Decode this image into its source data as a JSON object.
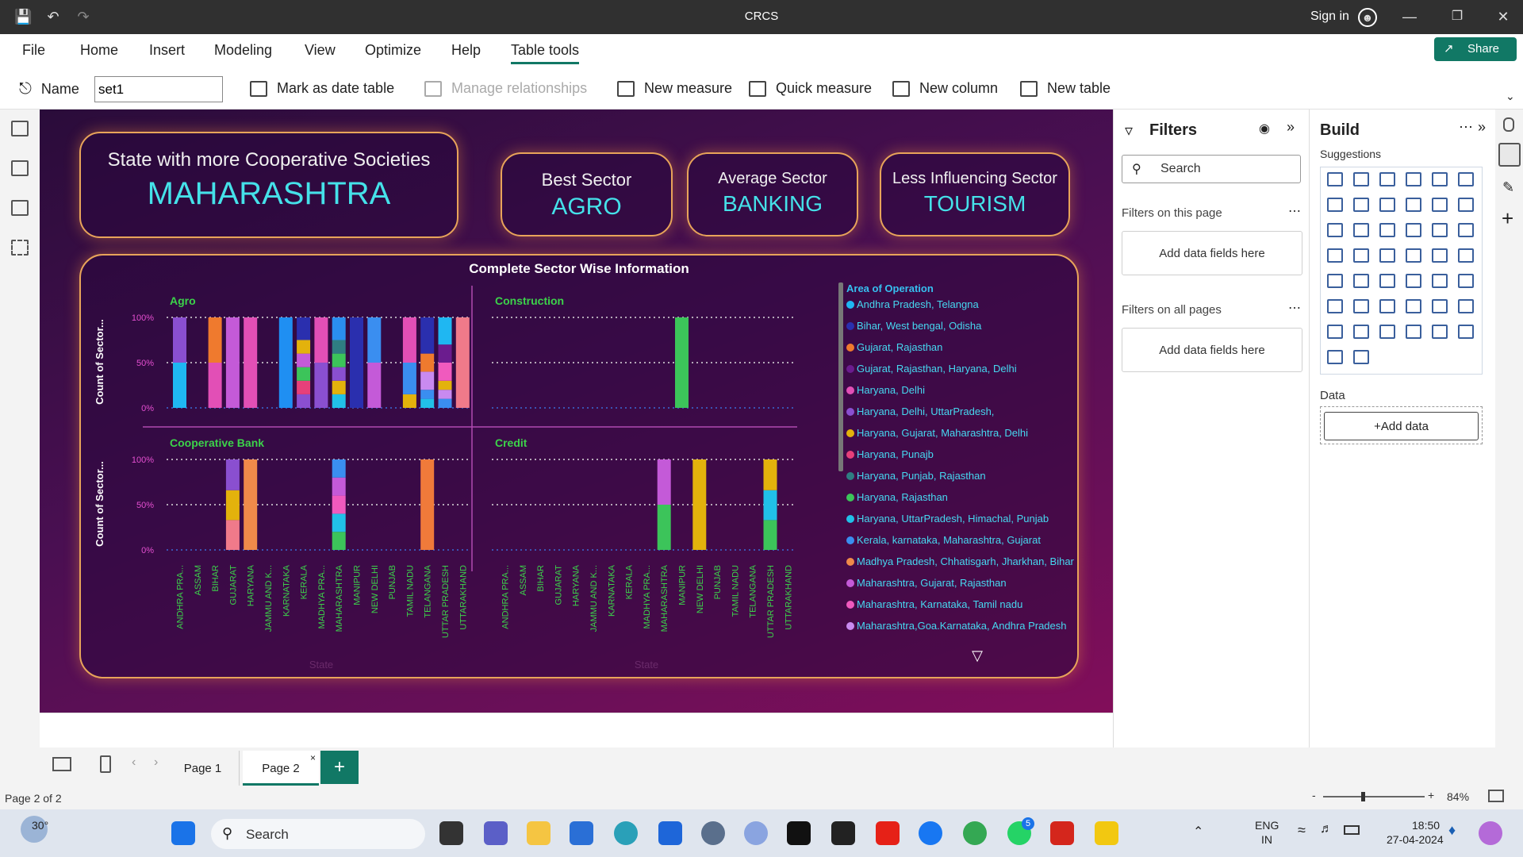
{
  "window": {
    "title": "CRCS",
    "sign_in": "Sign in",
    "share": "Share"
  },
  "menu": [
    "File",
    "Home",
    "Insert",
    "Modeling",
    "View",
    "Optimize",
    "Help",
    "Table tools"
  ],
  "ribbon": {
    "name_label": "Name",
    "name_value": "set1",
    "mark_date": "Mark as date table",
    "manage_rel": "Manage relationships",
    "new_measure": "New measure",
    "quick_measure": "Quick measure",
    "new_column": "New column",
    "new_table": "New table"
  },
  "cards": {
    "state": {
      "label": "State with more Cooperative Societies",
      "value": "MAHARASHTRA"
    },
    "best": {
      "label": "Best Sector",
      "value": "AGRO"
    },
    "avg": {
      "label": "Average Sector",
      "value": "BANKING"
    },
    "less": {
      "label": "Less Influencing Sector",
      "value": "TOURISM"
    }
  },
  "chart_data": {
    "type": "bar",
    "title": "Complete Sector Wise Information",
    "ylabel": "Count of Sector...",
    "xlabel": "State",
    "yticks": [
      "100%",
      "50%",
      "0%"
    ],
    "categories": [
      "ANDHRA PRA...",
      "ASSAM",
      "BIHAR",
      "GUJARAT",
      "HARYANA",
      "JAMMU AND K...",
      "KARNATAKA",
      "KERALA",
      "MADHYA PRA...",
      "MAHARASHTRA",
      "MANIPUR",
      "NEW DELHI",
      "PUNJAB",
      "TAMIL NADU",
      "TELANGANA",
      "UTTAR PRADESH",
      "UTTARAKHAND"
    ],
    "legend_title": "Area of Operation",
    "legend": [
      {
        "name": "Andhra Pradesh, Telangna",
        "color": "#1fb7f2"
      },
      {
        "name": "Bihar, West bengal, Odisha",
        "color": "#2a2fae"
      },
      {
        "name": "Gujarat, Rajasthan",
        "color": "#ef7a2e"
      },
      {
        "name": "Gujarat, Rajasthan, Haryana, Delhi",
        "color": "#6b1c8e"
      },
      {
        "name": "Haryana, Delhi",
        "color": "#e24fb6"
      },
      {
        "name": "Haryana, Delhi, UttarPradesh,",
        "color": "#8a4fd0"
      },
      {
        "name": "Haryana, Gujarat, Maharashtra, Delhi",
        "color": "#e3b20c"
      },
      {
        "name": "Haryana, Punajb",
        "color": "#e6407a"
      },
      {
        "name": "Haryana, Punjab, Rajasthan",
        "color": "#2f7d82"
      },
      {
        "name": "Haryana, Rajasthan",
        "color": "#3cc45a"
      },
      {
        "name": "Haryana, UttarPradesh, Himachal, Punjab",
        "color": "#21c0e8"
      },
      {
        "name": "Kerala, karnataka, Maharashtra, Gujarat",
        "color": "#3a8ef0"
      },
      {
        "name": "Madhya Pradesh, Chhatisgarh, Jharkhan, Bihar",
        "color": "#f08a4a"
      },
      {
        "name": "Maharashtra, Gujarat, Rajasthan",
        "color": "#c45ad8"
      },
      {
        "name": "Maharashtra, Karnataka, Tamil nadu",
        "color": "#f05abe"
      },
      {
        "name": "Maharashtra,Goa.Karnataka, Andhra Pradesh",
        "color": "#c98af0"
      }
    ],
    "panels": [
      {
        "title": "Agro",
        "bars": [
          {
            "cat": 0,
            "segs": [
              [
                0.5,
                "#1fb7f2"
              ],
              [
                0.5,
                "#8a4fd0"
              ]
            ]
          },
          {
            "cat": 2,
            "segs": [
              [
                0.5,
                "#e24fb6"
              ],
              [
                0.5,
                "#ef7a2e"
              ]
            ]
          },
          {
            "cat": 3,
            "segs": [
              [
                1.0,
                "#c45ad8"
              ]
            ]
          },
          {
            "cat": 4,
            "segs": [
              [
                1.0,
                "#e24fb6"
              ]
            ]
          },
          {
            "cat": 6,
            "segs": [
              [
                1.0,
                "#1f8ff2"
              ]
            ]
          },
          {
            "cat": 7,
            "segs": [
              [
                0.15,
                "#8a4fd0"
              ],
              [
                0.15,
                "#e6407a"
              ],
              [
                0.15,
                "#3cc45a"
              ],
              [
                0.15,
                "#c45ad8"
              ],
              [
                0.15,
                "#e3b20c"
              ],
              [
                0.25,
                "#2a2fae"
              ]
            ]
          },
          {
            "cat": 8,
            "segs": [
              [
                0.5,
                "#8a4fd0"
              ],
              [
                0.5,
                "#e24fb6"
              ]
            ]
          },
          {
            "cat": 9,
            "segs": [
              [
                0.15,
                "#21c0e8"
              ],
              [
                0.15,
                "#e3b20c"
              ],
              [
                0.15,
                "#8a4fd0"
              ],
              [
                0.15,
                "#3cc45a"
              ],
              [
                0.15,
                "#2f7d82"
              ],
              [
                0.25,
                "#2a8ef0"
              ]
            ]
          },
          {
            "cat": 10,
            "segs": [
              [
                1.0,
                "#2a2fae"
              ]
            ]
          },
          {
            "cat": 11,
            "segs": [
              [
                0.5,
                "#c45ad8"
              ],
              [
                0.5,
                "#3a8ef0"
              ]
            ]
          },
          {
            "cat": 13,
            "segs": [
              [
                0.15,
                "#e3b20c"
              ],
              [
                0.35,
                "#3a8ef0"
              ],
              [
                0.5,
                "#e24fb6"
              ]
            ]
          },
          {
            "cat": 14,
            "segs": [
              [
                0.1,
                "#21c0e8"
              ],
              [
                0.1,
                "#3a8ef0"
              ],
              [
                0.2,
                "#c98af0"
              ],
              [
                0.2,
                "#ef7a2e"
              ],
              [
                0.4,
                "#2a2fae"
              ]
            ]
          },
          {
            "cat": 15,
            "segs": [
              [
                0.1,
                "#3a8ef0"
              ],
              [
                0.1,
                "#c98af0"
              ],
              [
                0.1,
                "#e3b20c"
              ],
              [
                0.2,
                "#f05abe"
              ],
              [
                0.2,
                "#6b1c8e"
              ],
              [
                0.3,
                "#1fb7f2"
              ]
            ]
          },
          {
            "cat": 16,
            "segs": [
              [
                1.0,
                "#f07a8a"
              ]
            ]
          }
        ]
      },
      {
        "title": "Construction",
        "bars": [
          {
            "cat": 10,
            "segs": [
              [
                1.0,
                "#3cc45a"
              ]
            ]
          }
        ]
      },
      {
        "title": "Cooperative Bank",
        "bars": [
          {
            "cat": 3,
            "segs": [
              [
                0.33,
                "#f07a8a"
              ],
              [
                0.33,
                "#e3b20c"
              ],
              [
                0.34,
                "#8a4fd0"
              ]
            ]
          },
          {
            "cat": 4,
            "segs": [
              [
                1.0,
                "#f08a4a"
              ]
            ]
          },
          {
            "cat": 9,
            "segs": [
              [
                0.2,
                "#3cc45a"
              ],
              [
                0.2,
                "#21c0e8"
              ],
              [
                0.2,
                "#f05abe"
              ],
              [
                0.2,
                "#c45ad8"
              ],
              [
                0.2,
                "#3a8ef0"
              ]
            ]
          },
          {
            "cat": 14,
            "segs": [
              [
                1.0,
                "#f07a3a"
              ]
            ]
          }
        ]
      },
      {
        "title": "Credit",
        "bars": [
          {
            "cat": 9,
            "segs": [
              [
                0.5,
                "#3cc45a"
              ],
              [
                0.5,
                "#c45ad8"
              ]
            ]
          },
          {
            "cat": 11,
            "segs": [
              [
                1.0,
                "#e3b20c"
              ]
            ]
          },
          {
            "cat": 15,
            "segs": [
              [
                0.33,
                "#3cc45a"
              ],
              [
                0.33,
                "#21c0e8"
              ],
              [
                0.34,
                "#e3b20c"
              ]
            ]
          }
        ]
      }
    ]
  },
  "filters": {
    "title": "Filters",
    "search": "Search",
    "on_page": "Filters on this page",
    "all_pages": "Filters on all pages",
    "add_fields": "Add data fields here"
  },
  "build": {
    "title": "Build",
    "suggestions": "Suggestions",
    "data": "Data",
    "add_data": "+Add data"
  },
  "pages": {
    "tab1": "Page 1",
    "tab2": "Page 2",
    "status": "Page 2 of 2",
    "zoom": "84%"
  },
  "taskbar": {
    "temp": "30°",
    "search": "Search",
    "lang1": "ENG",
    "lang2": "IN",
    "time": "18:50",
    "date": "27-04-2024",
    "badge": "5"
  }
}
